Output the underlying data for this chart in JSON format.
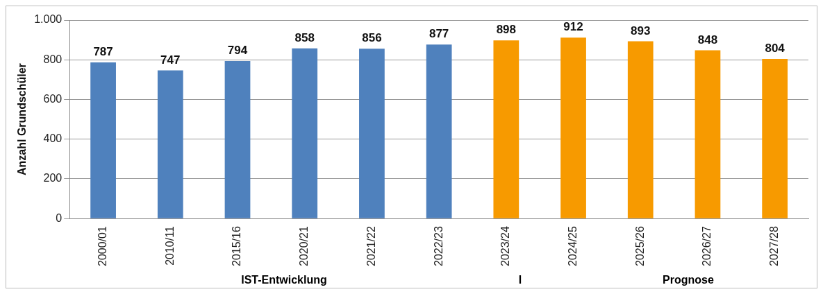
{
  "chart_data": {
    "type": "bar",
    "ylabel": "Anzahl Grundschüler",
    "categories": [
      "2000/01",
      "2010/11",
      "2015/16",
      "2020/21",
      "2021/22",
      "2022/23",
      "2023/24",
      "2024/25",
      "2025/26",
      "2026/27",
      "2027/28"
    ],
    "values": [
      787,
      747,
      794,
      858,
      856,
      877,
      898,
      912,
      893,
      848,
      804
    ],
    "colors": [
      "#4f81bd",
      "#4f81bd",
      "#4f81bd",
      "#4f81bd",
      "#4f81bd",
      "#4f81bd",
      "#f79a00",
      "#f79a00",
      "#f79a00",
      "#f79a00",
      "#f79a00"
    ],
    "ylim": [
      0,
      1000
    ],
    "yticks": [
      0,
      200,
      400,
      600,
      800,
      {
        "value": 1000,
        "label": "1.000"
      }
    ],
    "grid": "y",
    "legend": false,
    "data_labels": true,
    "annotations": [
      "IST-Entwicklung",
      "I",
      "Prognose"
    ]
  }
}
